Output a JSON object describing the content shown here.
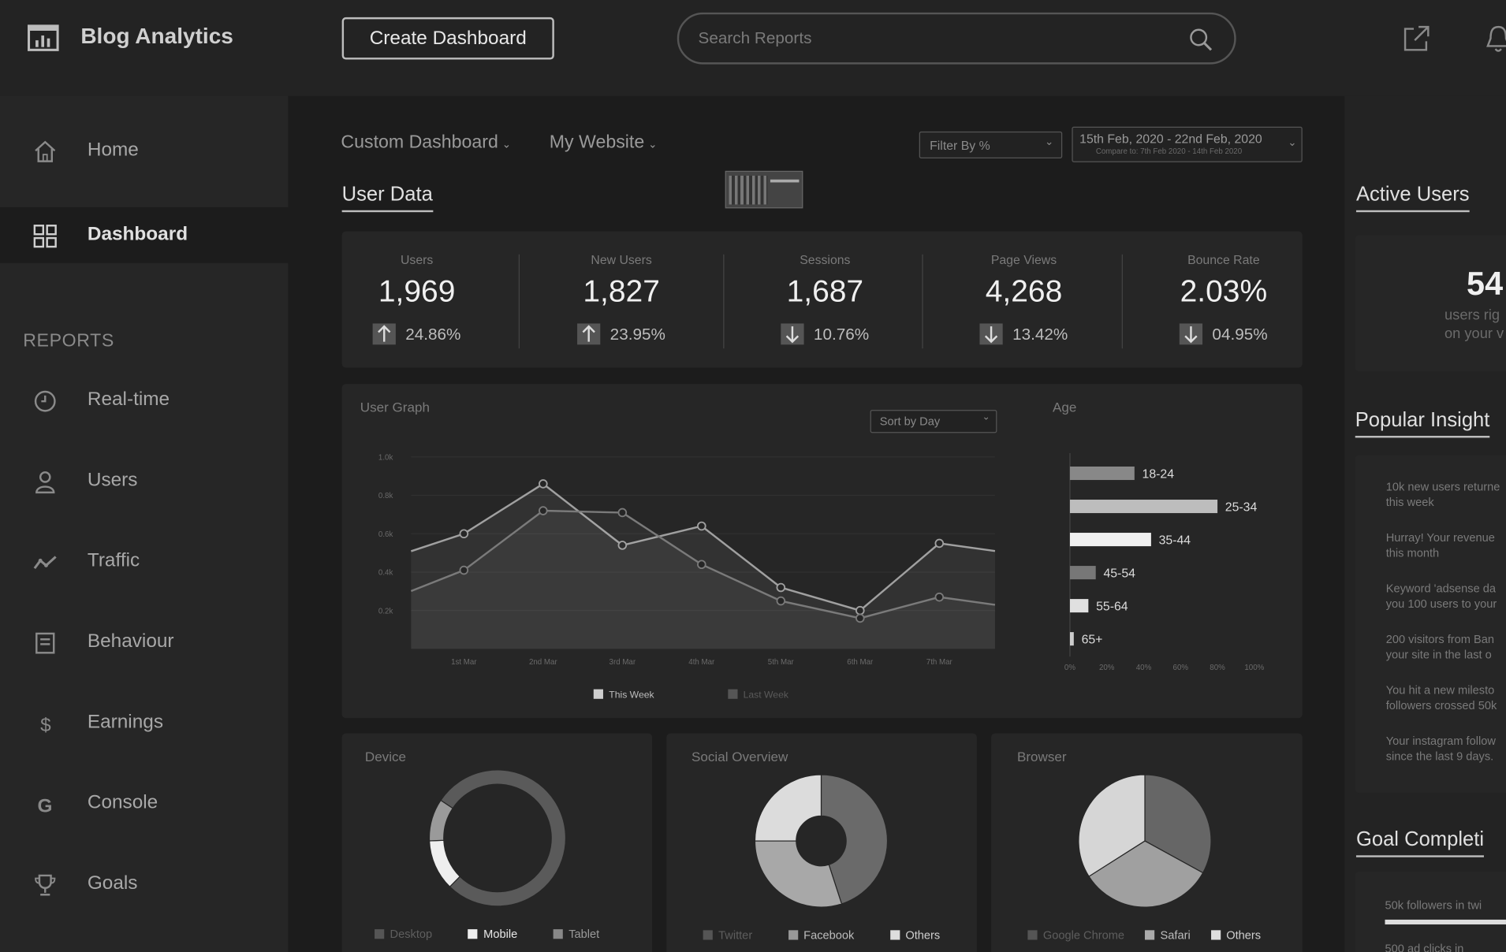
{
  "app": {
    "title": "Blog Analytics"
  },
  "toolbar": {
    "create_label": "Create Dashboard"
  },
  "search": {
    "placeholder": "Search Reports"
  },
  "sidebar": {
    "items": [
      {
        "label": "Home",
        "icon": "home-icon"
      },
      {
        "label": "Dashboard",
        "icon": "grid-icon",
        "active": true
      }
    ],
    "reports_heading": "REPORTS",
    "reports": [
      {
        "label": "Real-time",
        "icon": "clock-icon"
      },
      {
        "label": "Users",
        "icon": "user-icon"
      },
      {
        "label": "Traffic",
        "icon": "trend-icon"
      },
      {
        "label": "Behaviour",
        "icon": "document-icon"
      },
      {
        "label": "Earnings",
        "icon": "dollar-icon"
      },
      {
        "label": "Console",
        "icon": "g-icon"
      },
      {
        "label": "Goals",
        "icon": "trophy-icon"
      }
    ]
  },
  "filters": {
    "dashboard": "Custom Dashboard",
    "site": "My Website",
    "filter_by": "Filter By %",
    "date_range": "15th Feb, 2020 - 22nd Feb, 2020",
    "compare": "Compare to: 7th Feb 2020 - 14th Feb 2020"
  },
  "user_data": {
    "title": "User Data",
    "stats": [
      {
        "label": "Users",
        "value": "1,969",
        "change": "24.86%",
        "direction": "up"
      },
      {
        "label": "New Users",
        "value": "1,827",
        "change": "23.95%",
        "direction": "up"
      },
      {
        "label": "Sessions",
        "value": "1,687",
        "change": "10.76%",
        "direction": "down"
      },
      {
        "label": "Page Views",
        "value": "4,268",
        "change": "13.42%",
        "direction": "down"
      },
      {
        "label": "Bounce Rate",
        "value": "2.03%",
        "change": "04.95%",
        "direction": "down"
      }
    ]
  },
  "user_graph": {
    "title": "User Graph",
    "sort": "Sort by Day",
    "chart_data": {
      "type": "line",
      "x": [
        "1st Mar",
        "2nd Mar",
        "3rd Mar",
        "4th Mar",
        "5th Mar",
        "6th Mar",
        "7th Mar"
      ],
      "y_ticks": [
        "1.0k",
        "0.8k",
        "0.6k",
        "0.4k",
        "0.2k"
      ],
      "ylim": [
        0,
        1.0
      ],
      "series": [
        {
          "name": "This Week",
          "values": [
            0.6,
            0.86,
            0.54,
            0.64,
            0.32,
            0.2,
            0.55
          ]
        },
        {
          "name": "Last Week",
          "values": [
            0.41,
            0.72,
            0.71,
            0.44,
            0.25,
            0.16,
            0.27
          ]
        }
      ]
    }
  },
  "age": {
    "title": "Age",
    "chart_data": {
      "type": "bar",
      "orientation": "horizontal",
      "categories": [
        "18-24",
        "25-34",
        "35-44",
        "45-54",
        "55-64",
        "65+"
      ],
      "values": [
        35,
        80,
        44,
        14,
        10,
        2
      ],
      "xlim": [
        0,
        100
      ],
      "x_ticks": [
        "0%",
        "20%",
        "40%",
        "60%",
        "80%",
        "100%"
      ]
    }
  },
  "device": {
    "title": "Device",
    "legend": [
      "Desktop",
      "Mobile",
      "Tablet"
    ],
    "chart_data": {
      "type": "pie",
      "categories": [
        "Desktop",
        "Mobile",
        "Tablet"
      ],
      "values": [
        78,
        12,
        10
      ]
    }
  },
  "social": {
    "title": "Social Overview",
    "legend": [
      "Twitter",
      "Facebook",
      "Others"
    ],
    "chart_data": {
      "type": "pie",
      "categories": [
        "Twitter",
        "Facebook",
        "Others"
      ],
      "values": [
        45,
        30,
        25
      ]
    }
  },
  "browser": {
    "title": "Browser",
    "legend": [
      "Google Chrome",
      "Safari",
      "Others"
    ],
    "chart_data": {
      "type": "pie",
      "categories": [
        "Google Chrome",
        "Safari",
        "Others"
      ],
      "values": [
        33,
        33,
        34
      ]
    }
  },
  "right": {
    "active_title": "Active Users",
    "active_value": "54",
    "active_line1": "users rig",
    "active_line2": "on your v",
    "insights_title": "Popular Insight",
    "insights": [
      [
        "10k new users returne",
        "this week"
      ],
      [
        "Hurray! Your revenue",
        "this month"
      ],
      [
        "Keyword 'adsense da",
        "you 100 users to your"
      ],
      [
        "200 visitors from Ban",
        "your site in the last o"
      ],
      [
        "You hit a new milesto",
        "followers crossed 50k"
      ],
      [
        "Your instagram follow",
        "since the last 9 days."
      ]
    ],
    "goal_title": "Goal Completi",
    "goals": [
      "50k followers in twi",
      "500 ad clicks in"
    ]
  },
  "colors": {
    "bg": "#1c1c1c",
    "panel": "#262626",
    "accent": "#e0e0e0"
  }
}
